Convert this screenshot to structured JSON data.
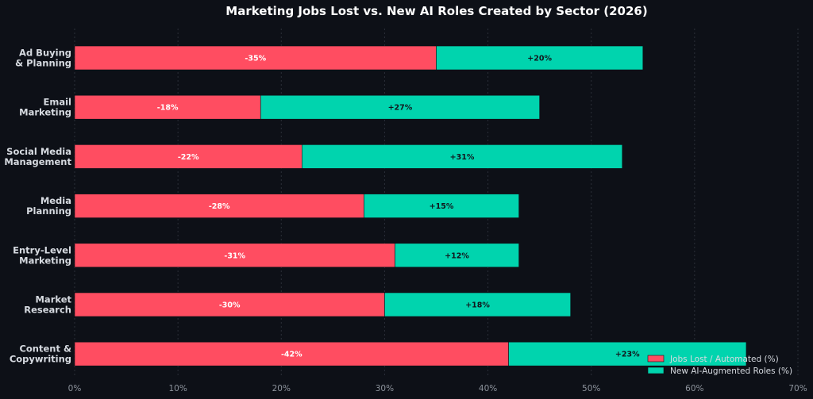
{
  "chart_data": {
    "type": "bar",
    "orientation": "horizontal",
    "stacked": true,
    "title": "Marketing Jobs Lost vs. New AI Roles Created by Sector (2026)",
    "categories": [
      [
        "Ad Buying",
        "& Planning"
      ],
      [
        "Email",
        "Marketing"
      ],
      [
        "Social Media",
        "Management"
      ],
      [
        "Media",
        "Planning"
      ],
      [
        "Entry-Level",
        "Marketing"
      ],
      [
        "Market",
        "Research"
      ],
      [
        "Content &",
        "Copywriting"
      ]
    ],
    "series": [
      {
        "name": "Jobs Lost / Automated (%)",
        "color": "#ff4d61",
        "values": [
          35,
          18,
          22,
          28,
          31,
          30,
          42
        ],
        "labels": [
          "-35%",
          "-18%",
          "-22%",
          "-28%",
          "-31%",
          "-30%",
          "-42%"
        ]
      },
      {
        "name": "New AI-Augmented Roles (%)",
        "color": "#00d4ae",
        "values": [
          20,
          27,
          31,
          15,
          12,
          18,
          23
        ],
        "labels": [
          "+20%",
          "+27%",
          "+31%",
          "+15%",
          "+12%",
          "+18%",
          "+23%"
        ]
      }
    ],
    "xlim": [
      0,
      70
    ],
    "xticks": [
      0,
      10,
      20,
      30,
      40,
      50,
      60,
      70
    ],
    "xtick_labels": [
      "0%",
      "10%",
      "20%",
      "30%",
      "40%",
      "50%",
      "60%",
      "70%"
    ],
    "grid": "vertical, dashed",
    "legend_position": "bottom-right",
    "background": "#0d1017",
    "title_color": "#ffffff",
    "label_color": "#d6dae0",
    "tick_color": "#8d939c"
  }
}
